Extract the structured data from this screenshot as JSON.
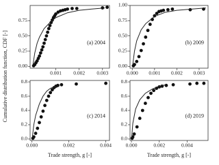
{
  "y_label": "Cumulative distribution function, CDF [-]",
  "chart_data": [
    {
      "type": "scatter",
      "annotation": "(a) 2004",
      "x": [
        5e-05,
        0.0001,
        0.00015,
        0.0002,
        0.00025,
        0.0003,
        0.00035,
        0.0004,
        0.00045,
        0.0005,
        0.00055,
        0.0006,
        0.00065,
        0.0007,
        0.00075,
        0.0008,
        0.00085,
        0.0009,
        0.00095,
        0.001,
        0.0011,
        0.0012,
        0.0013,
        0.0014,
        0.0015,
        0.0017,
        0.0019,
        0.003,
        0.0032
      ],
      "values": [
        0.01,
        0.03,
        0.06,
        0.09,
        0.13,
        0.17,
        0.22,
        0.27,
        0.32,
        0.38,
        0.44,
        0.5,
        0.56,
        0.62,
        0.67,
        0.72,
        0.76,
        0.8,
        0.83,
        0.86,
        0.89,
        0.91,
        0.92,
        0.93,
        0.94,
        0.95,
        0.95,
        0.96,
        0.97
      ],
      "fit": {
        "x": [
          2e-05,
          0.0001,
          0.0002,
          0.0003,
          0.0005,
          0.0008,
          0.001,
          0.0015,
          0.002,
          0.0025,
          0.0031
        ],
        "values": [
          0.02,
          0.22,
          0.38,
          0.48,
          0.62,
          0.74,
          0.8,
          0.88,
          0.92,
          0.94,
          0.96
        ]
      },
      "color": "#111111",
      "xlim": [
        -0.0001,
        0.0033
      ],
      "ylim": [
        -0.03,
        1.0
      ],
      "xticks": [
        0.001,
        0.002,
        0.003
      ],
      "yticks": [
        {
          "value": 0,
          "label": "0.00"
        },
        0.25,
        {
          "value": 0.5,
          "label": "0.50"
        },
        0.75
      ]
    },
    {
      "type": "scatter",
      "annotation": "(b) 2009",
      "x": [
        5e-05,
        0.0001,
        0.0002,
        0.0003,
        0.0004,
        0.0005,
        0.0006,
        0.0007,
        0.0008,
        0.0009,
        0.001,
        0.0011,
        0.0012,
        0.0013,
        0.0014,
        0.0016,
        0.0018,
        0.0026,
        0.0032
      ],
      "values": [
        0.01,
        0.03,
        0.08,
        0.16,
        0.26,
        0.37,
        0.48,
        0.59,
        0.69,
        0.77,
        0.83,
        0.87,
        0.9,
        0.91,
        0.92,
        0.93,
        0.94,
        0.93,
        0.94
      ],
      "fit": {
        "x": [
          2e-05,
          0.0001,
          0.0002,
          0.0004,
          0.0006,
          0.001,
          0.0015,
          0.002,
          0.0033
        ],
        "values": [
          0.02,
          0.25,
          0.42,
          0.6,
          0.7,
          0.82,
          0.89,
          0.92,
          0.96
        ]
      },
      "color": "#111111",
      "xlim": [
        -0.0001,
        0.0034
      ],
      "ylim": [
        -0.03,
        1.0
      ],
      "xticks": [
        {
          "value": 0,
          "label": "0.000"
        },
        0.001,
        0.002,
        0.003
      ],
      "yticks": [
        {
          "value": 0,
          "label": "0.00"
        },
        0.25,
        {
          "value": 0.5,
          "label": "0.50"
        },
        0.75,
        {
          "value": 1,
          "label": "1.00"
        }
      ]
    },
    {
      "type": "scatter",
      "annotation": "(c) 2014",
      "x_label": "Trade strength, g [-]",
      "x": [
        5e-05,
        0.0001,
        0.0002,
        0.0003,
        0.0004,
        0.0005,
        0.0006,
        0.0007,
        0.0008,
        0.0009,
        0.001,
        0.0011,
        0.0012,
        0.0013,
        0.0014,
        0.0016,
        0.0024,
        0.004
      ],
      "values": [
        0.01,
        0.03,
        0.08,
        0.15,
        0.23,
        0.31,
        0.39,
        0.47,
        0.54,
        0.6,
        0.65,
        0.69,
        0.72,
        0.74,
        0.75,
        0.76,
        0.77,
        0.78
      ],
      "fit": {
        "x": [
          2e-05,
          0.0001,
          0.0002,
          0.0004,
          0.0006,
          0.0008,
          0.001,
          0.0013
        ],
        "values": [
          0.02,
          0.2,
          0.33,
          0.49,
          0.6,
          0.67,
          0.71,
          0.74
        ]
      },
      "color": "#111111",
      "xlim": [
        -0.0001,
        0.0042
      ],
      "ylim": [
        -0.02,
        0.82
      ],
      "xticks": [
        {
          "value": 0,
          "label": "0.000"
        },
        0.002,
        0.004
      ],
      "yticks": [
        {
          "value": 0,
          "label": "0.0"
        },
        0.2,
        0.4,
        0.6,
        0.8
      ]
    },
    {
      "type": "scatter",
      "annotation": "(d) 2019",
      "x_label": "Trade strength, g [-]",
      "x": [
        5e-05,
        0.0001,
        0.0002,
        0.0004,
        0.0006,
        0.0008,
        0.001,
        0.0012,
        0.0014,
        0.0016,
        0.0018,
        0.002,
        0.0022,
        0.0025,
        0.003,
        0.0042,
        0.0047,
        0.0052
      ],
      "values": [
        0.01,
        0.03,
        0.07,
        0.17,
        0.29,
        0.4,
        0.5,
        0.58,
        0.64,
        0.68,
        0.71,
        0.73,
        0.74,
        0.75,
        0.76,
        0.77,
        0.78,
        0.78
      ],
      "fit": {
        "x": [
          2e-05,
          0.0001,
          0.0003,
          0.0006,
          0.001,
          0.0015,
          0.002,
          0.0025
        ],
        "values": [
          0.02,
          0.22,
          0.42,
          0.55,
          0.64,
          0.7,
          0.74,
          0.76
        ]
      },
      "color": "#111111",
      "xlim": [
        -0.0001,
        0.0055
      ],
      "ylim": [
        -0.02,
        0.82
      ],
      "xticks": [
        {
          "value": 0,
          "label": "0.000"
        },
        0.002,
        0.004
      ],
      "yticks": [
        {
          "value": 0,
          "label": "0.0"
        },
        0.2,
        0.4,
        0.6,
        0.8
      ]
    }
  ]
}
